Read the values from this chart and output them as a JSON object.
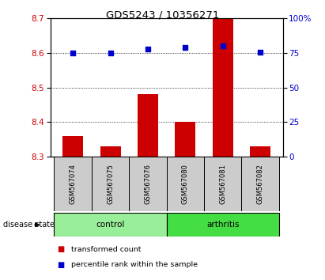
{
  "title": "GDS5243 / 10356271",
  "samples": [
    "GSM567074",
    "GSM567075",
    "GSM567076",
    "GSM567080",
    "GSM567081",
    "GSM567082"
  ],
  "bar_values": [
    8.36,
    8.33,
    8.48,
    8.4,
    8.7,
    8.33
  ],
  "dot_values": [
    75.0,
    75.0,
    78.0,
    79.0,
    80.0,
    75.5
  ],
  "bar_color": "#cc0000",
  "dot_color": "#0000cc",
  "bar_bottom": 8.3,
  "ylim_left": [
    8.3,
    8.7
  ],
  "ylim_right": [
    0,
    100
  ],
  "yticks_left": [
    8.3,
    8.4,
    8.5,
    8.6,
    8.7
  ],
  "yticks_right": [
    0,
    25,
    50,
    75,
    100
  ],
  "groups": [
    {
      "label": "control",
      "indices": [
        0,
        1,
        2
      ],
      "color": "#99ee99"
    },
    {
      "label": "arthritis",
      "indices": [
        3,
        4,
        5
      ],
      "color": "#44dd44"
    }
  ],
  "disease_state_label": "disease state",
  "legend_items": [
    {
      "label": "transformed count",
      "color": "#cc0000"
    },
    {
      "label": "percentile rank within the sample",
      "color": "#0000cc"
    }
  ],
  "grid_color": "#000000",
  "bg_color": "#ffffff",
  "sample_label_area_color": "#cccccc"
}
